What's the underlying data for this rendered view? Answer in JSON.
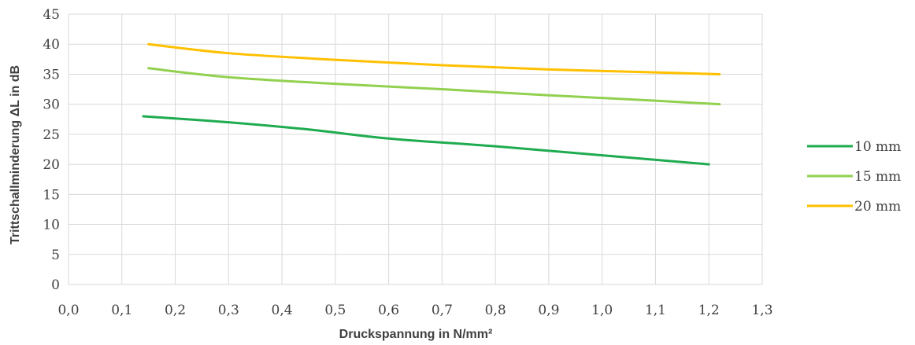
{
  "chart_data": {
    "type": "line",
    "title": "",
    "xlabel": "Druckspannung in N/mm²",
    "ylabel": "Trittschallminderung ΔL in dB",
    "xlim": [
      0,
      1.3
    ],
    "ylim": [
      0,
      45
    ],
    "x_ticks": [
      "0,0",
      "0,1",
      "0,2",
      "0,3",
      "0,4",
      "0,5",
      "0,6",
      "0,7",
      "0,8",
      "0,9",
      "1,0",
      "1,1",
      "1,2",
      "1,3"
    ],
    "y_ticks": [
      "0",
      "5",
      "10",
      "15",
      "20",
      "25",
      "30",
      "35",
      "40",
      "45"
    ],
    "grid": true,
    "legend_position": "right",
    "series": [
      {
        "name": "10 mm",
        "color": "#1fab4f",
        "points": [
          [
            0.14,
            28
          ],
          [
            0.3,
            27
          ],
          [
            0.45,
            25.8
          ],
          [
            0.6,
            24.3
          ],
          [
            0.8,
            23
          ],
          [
            1.0,
            21.5
          ],
          [
            1.2,
            20
          ]
        ]
      },
      {
        "name": "15 mm",
        "color": "#92d050",
        "points": [
          [
            0.15,
            36
          ],
          [
            0.3,
            34.5
          ],
          [
            0.5,
            33.4
          ],
          [
            0.7,
            32.5
          ],
          [
            0.9,
            31.5
          ],
          [
            1.1,
            30.6
          ],
          [
            1.22,
            30
          ]
        ]
      },
      {
        "name": "20 mm",
        "color": "#ffc000",
        "points": [
          [
            0.15,
            40
          ],
          [
            0.3,
            38.5
          ],
          [
            0.5,
            37.4
          ],
          [
            0.7,
            36.5
          ],
          [
            0.9,
            35.8
          ],
          [
            1.1,
            35.3
          ],
          [
            1.22,
            35
          ]
        ]
      }
    ]
  }
}
